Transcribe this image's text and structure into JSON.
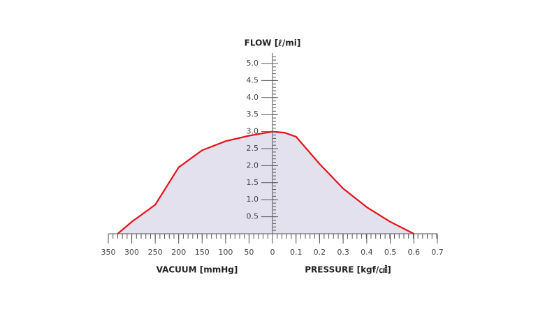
{
  "chart_data": {
    "type": "area",
    "title": "FLOW [ℓ/mi]",
    "color": "#e3131b",
    "fill": "#e4e1ef",
    "ylim": [
      0,
      5
    ],
    "yticks": [
      0.5,
      {
        "value": 1,
        "label": "1.0"
      },
      1.5,
      {
        "value": 2,
        "label": "2.0"
      },
      2.5,
      {
        "value": 3,
        "label": "3.0"
      },
      3.5,
      {
        "value": 4,
        "label": "4.0"
      },
      4.5,
      {
        "value": 5,
        "label": "5.0"
      }
    ],
    "vacuum": {
      "label": "VACUUM [mmHg]",
      "xlim": [
        350,
        0
      ],
      "xticks": [
        350,
        300,
        250,
        200,
        150,
        100,
        50,
        0
      ],
      "x": [
        330,
        300,
        250,
        200,
        150,
        100,
        50,
        0
      ],
      "values": [
        0,
        0.35,
        0.85,
        1.95,
        2.45,
        2.72,
        2.88,
        3.0
      ]
    },
    "pressure": {
      "label": "PRESSURE [kgf/㎠]",
      "xlim": [
        0,
        0.7
      ],
      "xticks": [
        0.1,
        0.2,
        0.3,
        0.4,
        0.5,
        0.6,
        0.7
      ],
      "x": [
        0,
        0.05,
        0.1,
        0.2,
        0.3,
        0.4,
        0.5,
        0.6
      ],
      "values": [
        3.0,
        2.97,
        2.85,
        2.05,
        1.33,
        0.78,
        0.35,
        0
      ]
    }
  }
}
